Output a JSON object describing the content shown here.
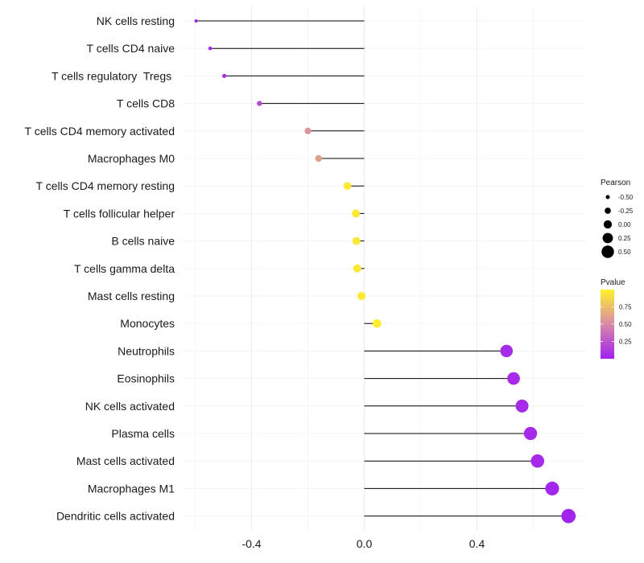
{
  "chart_data": {
    "type": "lollipop",
    "title": "",
    "xlabel": "",
    "ylabel": "",
    "xlim": [
      -0.6,
      0.75
    ],
    "x_ticks": [
      -0.4,
      0.0,
      0.4
    ],
    "x_tick_labels": [
      "-0.4",
      "0.0",
      "0.4"
    ],
    "grid": true,
    "categories": [
      "NK cells resting",
      "T cells CD4 naive",
      "T cells regulatory  Tregs ",
      "T cells CD8",
      "T cells CD4 memory activated",
      "Macrophages M0",
      "T cells CD4 memory resting",
      "T cells follicular helper",
      "B cells naive",
      "T cells gamma delta",
      "Mast cells resting",
      "Monocytes",
      "Neutrophils",
      "Eosinophils",
      "NK cells activated",
      "Plasma cells",
      "Mast cells activated",
      "Macrophages M1",
      "Dendritic cells activated"
    ],
    "values": [
      -0.597,
      -0.547,
      -0.497,
      -0.372,
      -0.2,
      -0.162,
      -0.06,
      -0.03,
      -0.028,
      -0.025,
      -0.01,
      0.045,
      0.505,
      0.53,
      0.56,
      0.59,
      0.615,
      0.667,
      0.725
    ],
    "pvalues": [
      0.02,
      0.02,
      0.05,
      0.2,
      0.55,
      0.6,
      0.95,
      0.95,
      0.95,
      0.95,
      0.96,
      0.97,
      0.05,
      0.05,
      0.05,
      0.05,
      0.05,
      0.03,
      0.02
    ],
    "size_legend": {
      "title": "Pearson",
      "breaks": [
        -0.5,
        -0.25,
        0.0,
        0.25,
        0.5
      ],
      "labels": [
        "-0.50",
        "-0.25",
        "0.00",
        "0.25",
        "0.50"
      ]
    },
    "color_legend": {
      "title": "Pvalue",
      "range": [
        0.0,
        1.0
      ],
      "breaks": [
        0.25,
        0.5,
        0.75
      ],
      "labels": [
        "0.25",
        "0.50",
        "0.75"
      ],
      "low_color": "#a020f0",
      "mid_color": "#d98aa8",
      "high_color": "#fff22a"
    },
    "legend_position": "right"
  }
}
